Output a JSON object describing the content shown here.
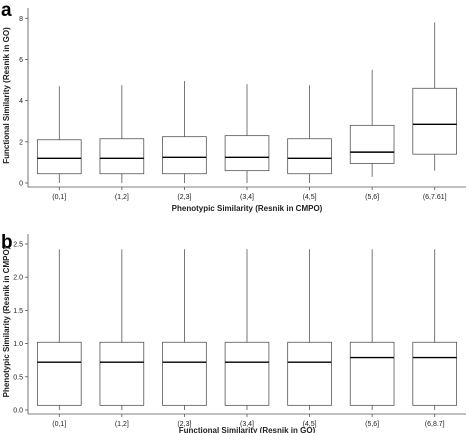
{
  "chart_data": [
    {
      "type": "box",
      "panel_label": "a",
      "xlabel": "Phenotypic Similarity (Resnik in CMPO)",
      "ylabel": "Functional Similarity (Resnik in GO)",
      "ylim": [
        0,
        8.5
      ],
      "yticks": [
        0,
        2,
        4,
        6,
        8
      ],
      "grid": false,
      "categories": [
        "(0,1]",
        "(1,2]",
        "(2,3]",
        "(3,4]",
        "(4,5]",
        "(5,6]",
        "(6,7.61]"
      ],
      "boxes": [
        {
          "whisker_low": 0.0,
          "q1": 0.45,
          "median": 1.2,
          "q3": 2.1,
          "whisker_high": 4.7
        },
        {
          "whisker_low": 0.0,
          "q1": 0.45,
          "median": 1.2,
          "q3": 2.15,
          "whisker_high": 4.75
        },
        {
          "whisker_low": 0.0,
          "q1": 0.45,
          "median": 1.25,
          "q3": 2.25,
          "whisker_high": 4.95
        },
        {
          "whisker_low": 0.0,
          "q1": 0.6,
          "median": 1.25,
          "q3": 2.3,
          "whisker_high": 4.8
        },
        {
          "whisker_low": 0.0,
          "q1": 0.45,
          "median": 1.2,
          "q3": 2.15,
          "whisker_high": 4.75
        },
        {
          "whisker_low": 0.3,
          "q1": 0.95,
          "median": 1.5,
          "q3": 2.8,
          "whisker_high": 5.5
        },
        {
          "whisker_low": 0.6,
          "q1": 1.4,
          "median": 2.85,
          "q3": 4.6,
          "whisker_high": 7.8
        }
      ]
    },
    {
      "type": "box",
      "panel_label": "b",
      "xlabel": "Functional Similarity (Resnik in GO)",
      "ylabel": "Phenotypic Similarity (Resnik in CMPO)",
      "ylim": [
        0,
        2.65
      ],
      "yticks": [
        0.0,
        0.5,
        1.0,
        1.5,
        2.0,
        2.5
      ],
      "grid": false,
      "categories": [
        "(0,1]",
        "(1,2]",
        "(2,3]",
        "(3,4]",
        "(4,5]",
        "(5,6]",
        "(6,8.7]"
      ],
      "boxes": [
        {
          "whisker_low": 0.0,
          "q1": 0.07,
          "median": 0.72,
          "q3": 1.02,
          "whisker_high": 2.42
        },
        {
          "whisker_low": 0.0,
          "q1": 0.07,
          "median": 0.72,
          "q3": 1.02,
          "whisker_high": 2.42
        },
        {
          "whisker_low": 0.0,
          "q1": 0.07,
          "median": 0.72,
          "q3": 1.02,
          "whisker_high": 2.42
        },
        {
          "whisker_low": 0.0,
          "q1": 0.07,
          "median": 0.72,
          "q3": 1.02,
          "whisker_high": 2.42
        },
        {
          "whisker_low": 0.0,
          "q1": 0.07,
          "median": 0.72,
          "q3": 1.02,
          "whisker_high": 2.42
        },
        {
          "whisker_low": 0.0,
          "q1": 0.07,
          "median": 0.79,
          "q3": 1.02,
          "whisker_high": 2.42
        },
        {
          "whisker_low": 0.0,
          "q1": 0.07,
          "median": 0.79,
          "q3": 1.02,
          "whisker_high": 2.42
        }
      ]
    }
  ]
}
